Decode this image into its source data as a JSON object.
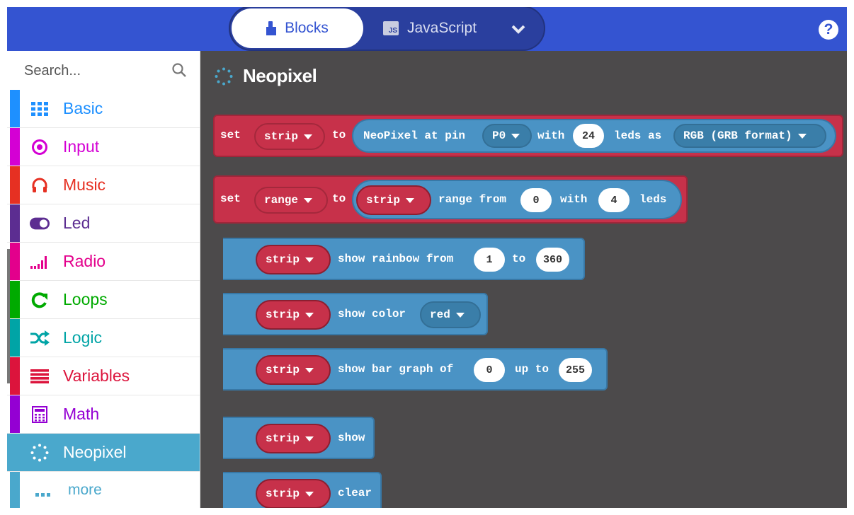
{
  "header": {
    "blocks_label": "Blocks",
    "js_label": "JavaScript",
    "js_badge": "JS",
    "help_glyph": "?"
  },
  "sidebar": {
    "search_placeholder": "Search...",
    "categories": [
      {
        "label": "Basic",
        "color": "#1E90FF",
        "icon": "grid-icon"
      },
      {
        "label": "Input",
        "color": "#D400D4",
        "icon": "target-icon"
      },
      {
        "label": "Music",
        "color": "#E63022",
        "icon": "headphones-icon"
      },
      {
        "label": "Led",
        "color": "#5C2D91",
        "icon": "toggle-icon"
      },
      {
        "label": "Radio",
        "color": "#E3008C",
        "icon": "signal-bars-icon"
      },
      {
        "label": "Loops",
        "color": "#00AA00",
        "icon": "refresh-icon"
      },
      {
        "label": "Logic",
        "color": "#00A4A6",
        "icon": "shuffle-icon"
      },
      {
        "label": "Variables",
        "color": "#DC143C",
        "icon": "lines-icon"
      },
      {
        "label": "Math",
        "color": "#9400D3",
        "icon": "calculator-icon"
      },
      {
        "label": "Neopixel",
        "color": "#4AA8CC",
        "icon": "neopixel-icon"
      }
    ],
    "more_label": "more"
  },
  "workspace": {
    "title": "Neopixel",
    "blocks": {
      "b1": {
        "set": "set",
        "var": "strip",
        "to": "to",
        "text1": "NeoPixel at pin",
        "pin": "P0",
        "with": "with",
        "count": "24",
        "leds_as": "leds as",
        "mode": "RGB (GRB format)"
      },
      "b2": {
        "set": "set",
        "var": "range",
        "to": "to",
        "strip": "strip",
        "text1": "range from",
        "from": "0",
        "with": "with",
        "count": "4",
        "leds": "leds"
      },
      "b3": {
        "strip": "strip",
        "text": "show rainbow from",
        "from": "1",
        "to": "to",
        "end": "360"
      },
      "b4": {
        "strip": "strip",
        "text": "show color",
        "color": "red"
      },
      "b5": {
        "strip": "strip",
        "text": "show bar graph of",
        "value": "0",
        "up_to": "up to",
        "max": "255"
      },
      "b6": {
        "strip": "strip",
        "text": "show"
      },
      "b7": {
        "strip": "strip",
        "text": "clear"
      }
    }
  }
}
